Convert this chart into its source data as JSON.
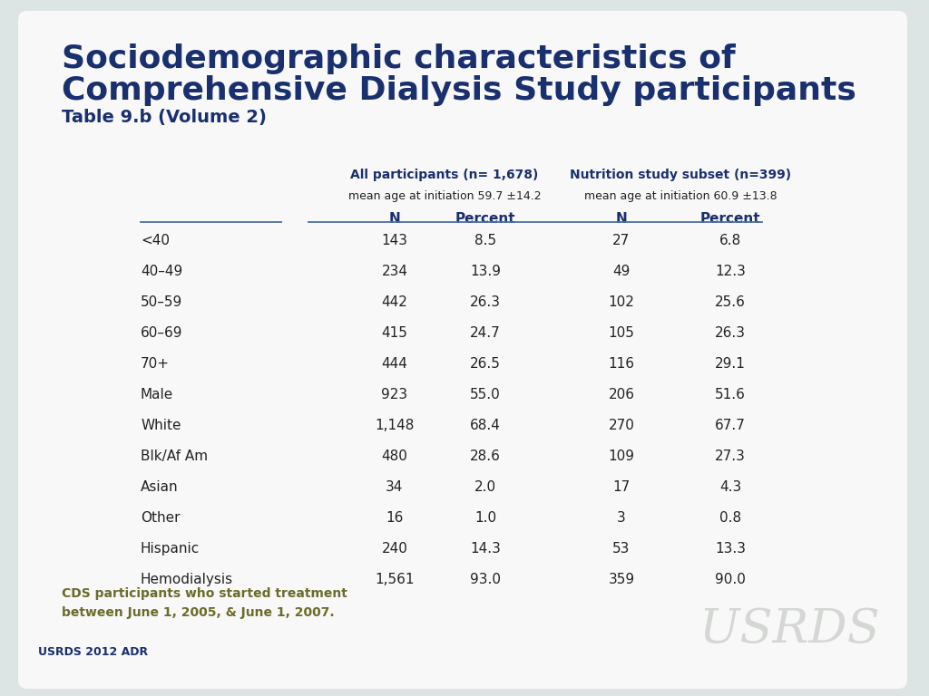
{
  "title_line1": "Sociodemographic characteristics of",
  "title_line2": "Comprehensive Dialysis Study participants",
  "subtitle": "Table 9.b (Volume 2)",
  "title_color": "#1a2f6e",
  "subtitle_color": "#1a2f6e",
  "col_header1_line1": "All participants (n= 1,678)",
  "col_header1_line2": "mean age at initiation 59.7 ±14.2",
  "col_header2_line1": "Nutrition study subset (n=399)",
  "col_header2_line2": "mean age at initiation 60.9 ±13.8",
  "rows": [
    {
      "label": "<40",
      "n1": "143",
      "p1": "8.5",
      "n2": "27",
      "p2": "6.8"
    },
    {
      "label": "40–49",
      "n1": "234",
      "p1": "13.9",
      "n2": "49",
      "p2": "12.3"
    },
    {
      "label": "50–59",
      "n1": "442",
      "p1": "26.3",
      "n2": "102",
      "p2": "25.6"
    },
    {
      "label": "60–69",
      "n1": "415",
      "p1": "24.7",
      "n2": "105",
      "p2": "26.3"
    },
    {
      "label": "70+",
      "n1": "444",
      "p1": "26.5",
      "n2": "116",
      "p2": "29.1"
    },
    {
      "label": "Male",
      "n1": "923",
      "p1": "55.0",
      "n2": "206",
      "p2": "51.6"
    },
    {
      "label": "White",
      "n1": "1,148",
      "p1": "68.4",
      "n2": "270",
      "p2": "67.7"
    },
    {
      "label": "Blk/Af Am",
      "n1": "480",
      "p1": "28.6",
      "n2": "109",
      "p2": "27.3"
    },
    {
      "label": "Asian",
      "n1": "34",
      "p1": "2.0",
      "n2": "17",
      "p2": "4.3"
    },
    {
      "label": "Other",
      "n1": "16",
      "p1": "1.0",
      "n2": "3",
      "p2": "0.8"
    },
    {
      "label": "Hispanic",
      "n1": "240",
      "p1": "14.3",
      "n2": "53",
      "p2": "13.3"
    },
    {
      "label": "Hemodialysis",
      "n1": "1,561",
      "p1": "93.0",
      "n2": "359",
      "p2": "90.0"
    }
  ],
  "footer_note": "CDS participants who started treatment\nbetween June 1, 2005, & June 1, 2007.",
  "footer_source": "USRDS 2012 ADR",
  "footer_note_color": "#6b6b2a",
  "footer_source_color": "#1a2f6e",
  "background_color": "#dde4e4",
  "card_color": "#f7f8f7",
  "header_line_color": "#4a6fa5",
  "text_color": "#222222",
  "header_text_color": "#1a2f6e"
}
